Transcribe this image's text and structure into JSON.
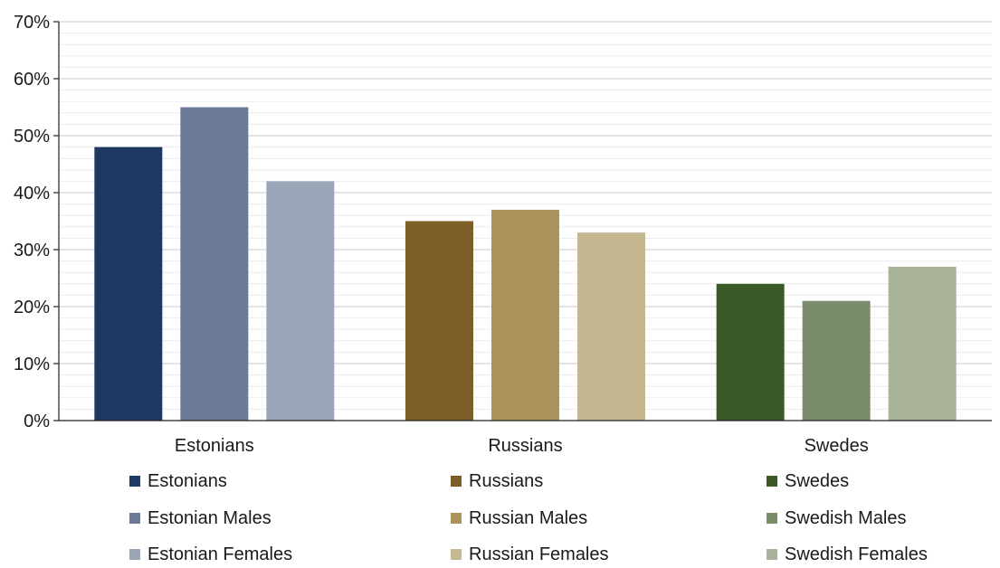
{
  "chart_data": {
    "type": "bar",
    "categories": [
      "Estonians",
      "Russians",
      "Swedes"
    ],
    "ylim": [
      0,
      70
    ],
    "yticks": [
      0,
      10,
      20,
      30,
      40,
      50,
      60,
      70
    ],
    "ytick_labels": [
      "0%",
      "10%",
      "20%",
      "30%",
      "40%",
      "50%",
      "60%",
      "70%"
    ],
    "groups": [
      {
        "category": "Estonians",
        "series": [
          {
            "name": "Estonians",
            "value": 48,
            "color": "#1f3862"
          },
          {
            "name": "Estonian Males",
            "value": 55,
            "color": "#6b7a97"
          },
          {
            "name": "Estonian Females",
            "value": 42,
            "color": "#9aa5b8"
          }
        ]
      },
      {
        "category": "Russians",
        "series": [
          {
            "name": "Russians",
            "value": 35,
            "color": "#7d5e27"
          },
          {
            "name": "Russian Males",
            "value": 37,
            "color": "#ac935c"
          },
          {
            "name": "Russian Females",
            "value": 33,
            "color": "#c6b793"
          }
        ]
      },
      {
        "category": "Swedes",
        "series": [
          {
            "name": "Swedes",
            "value": 24,
            "color": "#3b5a28"
          },
          {
            "name": "Swedish Males",
            "value": 21,
            "color": "#7a8c6a"
          },
          {
            "name": "Swedish Females",
            "value": 27,
            "color": "#a8b39a"
          }
        ]
      }
    ],
    "grid": true,
    "legend": "bottom"
  }
}
